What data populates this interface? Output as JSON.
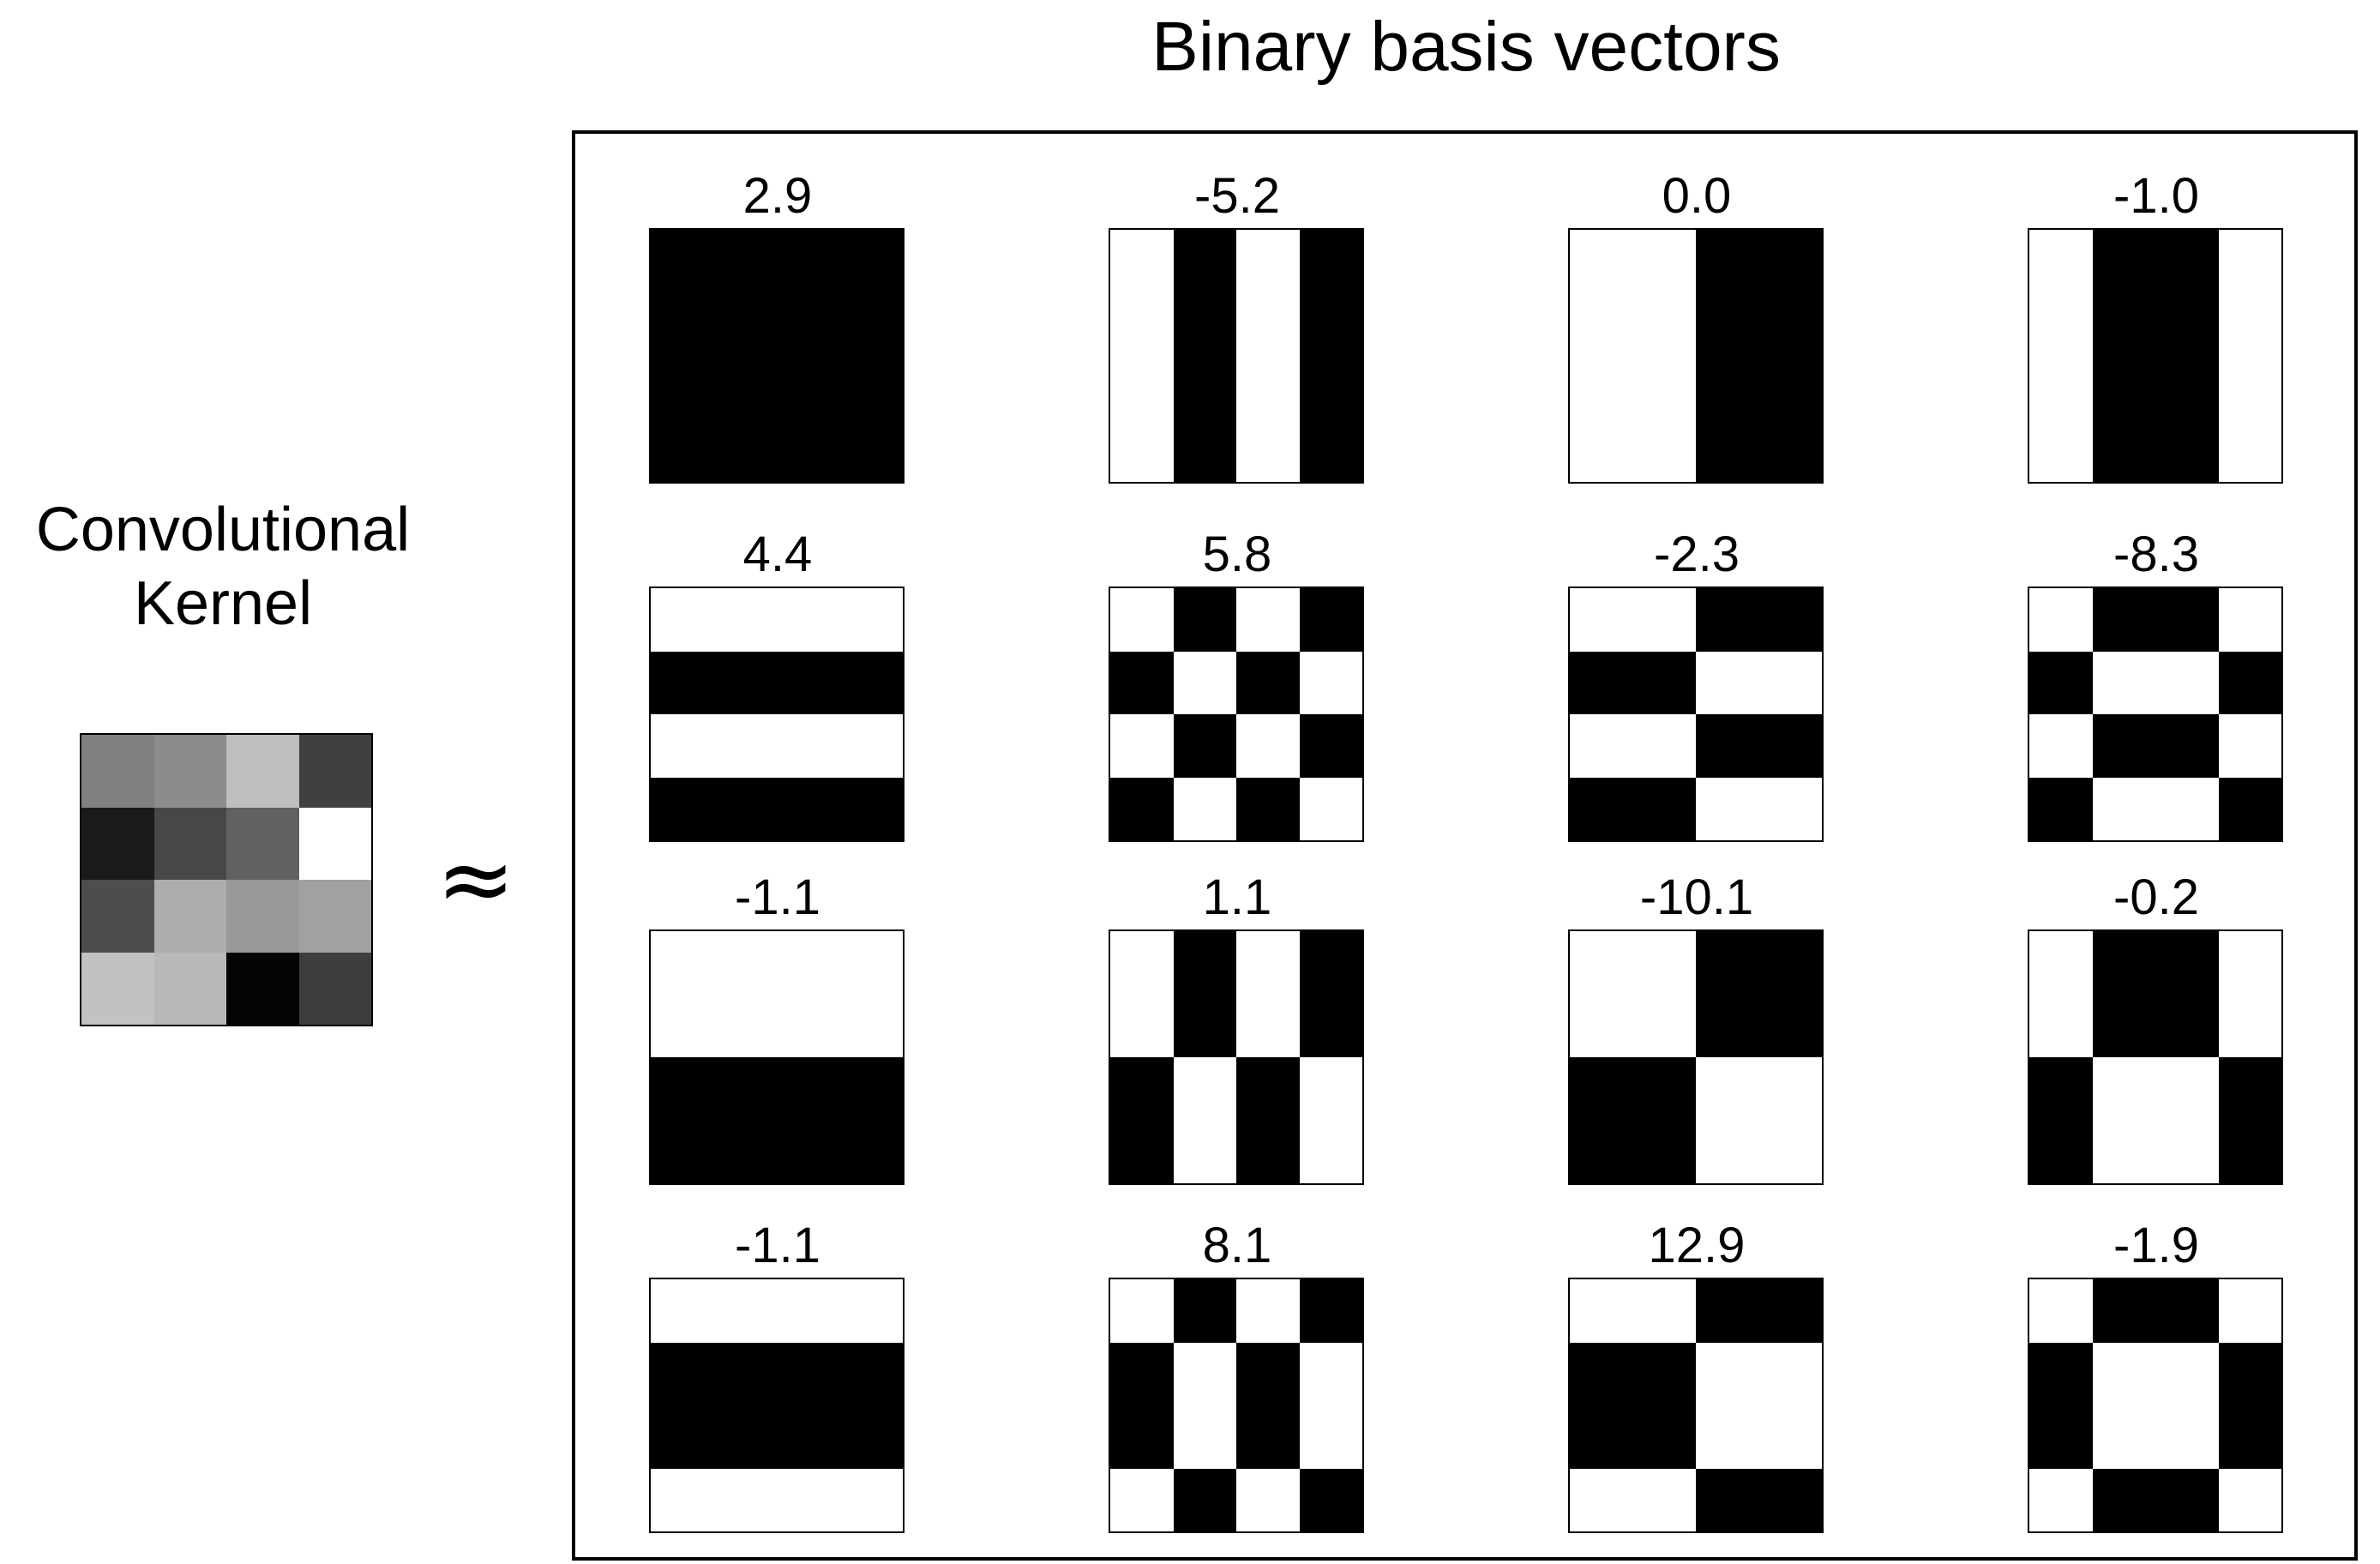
{
  "title": "Binary basis vectors",
  "kernel": {
    "label_line1": "Convolutional",
    "label_line2": "Kernel",
    "approx_symbol": "≈",
    "gray_levels": [
      [
        0.5,
        0.55,
        0.75,
        0.25
      ],
      [
        0.1,
        0.28,
        0.38,
        1.0
      ],
      [
        0.3,
        0.68,
        0.6,
        0.63
      ],
      [
        0.76,
        0.72,
        0.02,
        0.24
      ]
    ]
  },
  "basis": [
    {
      "coef": "2.9",
      "pattern": [
        [
          1,
          1,
          1,
          1
        ],
        [
          1,
          1,
          1,
          1
        ],
        [
          1,
          1,
          1,
          1
        ],
        [
          1,
          1,
          1,
          1
        ]
      ]
    },
    {
      "coef": "-5.2",
      "pattern": [
        [
          0,
          1,
          0,
          1
        ],
        [
          0,
          1,
          0,
          1
        ],
        [
          0,
          1,
          0,
          1
        ],
        [
          0,
          1,
          0,
          1
        ]
      ]
    },
    {
      "coef": "0.0",
      "pattern": [
        [
          0,
          0,
          1,
          1
        ],
        [
          0,
          0,
          1,
          1
        ],
        [
          0,
          0,
          1,
          1
        ],
        [
          0,
          0,
          1,
          1
        ]
      ]
    },
    {
      "coef": "-1.0",
      "pattern": [
        [
          0,
          1,
          1,
          0
        ],
        [
          0,
          1,
          1,
          0
        ],
        [
          0,
          1,
          1,
          0
        ],
        [
          0,
          1,
          1,
          0
        ]
      ]
    },
    {
      "coef": "4.4",
      "pattern": [
        [
          0,
          0,
          0,
          0
        ],
        [
          1,
          1,
          1,
          1
        ],
        [
          0,
          0,
          0,
          0
        ],
        [
          1,
          1,
          1,
          1
        ]
      ]
    },
    {
      "coef": "5.8",
      "pattern": [
        [
          0,
          1,
          0,
          1
        ],
        [
          1,
          0,
          1,
          0
        ],
        [
          0,
          1,
          0,
          1
        ],
        [
          1,
          0,
          1,
          0
        ]
      ]
    },
    {
      "coef": "-2.3",
      "pattern": [
        [
          0,
          0,
          1,
          1
        ],
        [
          1,
          1,
          0,
          0
        ],
        [
          0,
          0,
          1,
          1
        ],
        [
          1,
          1,
          0,
          0
        ]
      ]
    },
    {
      "coef": "-8.3",
      "pattern": [
        [
          0,
          1,
          1,
          0
        ],
        [
          1,
          0,
          0,
          1
        ],
        [
          0,
          1,
          1,
          0
        ],
        [
          1,
          0,
          0,
          1
        ]
      ]
    },
    {
      "coef": "-1.1",
      "pattern": [
        [
          0,
          0,
          0,
          0
        ],
        [
          0,
          0,
          0,
          0
        ],
        [
          1,
          1,
          1,
          1
        ],
        [
          1,
          1,
          1,
          1
        ]
      ]
    },
    {
      "coef": "1.1",
      "pattern": [
        [
          0,
          1,
          0,
          1
        ],
        [
          0,
          1,
          0,
          1
        ],
        [
          1,
          0,
          1,
          0
        ],
        [
          1,
          0,
          1,
          0
        ]
      ]
    },
    {
      "coef": "-10.1",
      "pattern": [
        [
          0,
          0,
          1,
          1
        ],
        [
          0,
          0,
          1,
          1
        ],
        [
          1,
          1,
          0,
          0
        ],
        [
          1,
          1,
          0,
          0
        ]
      ]
    },
    {
      "coef": "-0.2",
      "pattern": [
        [
          0,
          1,
          1,
          0
        ],
        [
          0,
          1,
          1,
          0
        ],
        [
          1,
          0,
          0,
          1
        ],
        [
          1,
          0,
          0,
          1
        ]
      ]
    },
    {
      "coef": "-1.1",
      "pattern": [
        [
          0,
          0,
          0,
          0
        ],
        [
          1,
          1,
          1,
          1
        ],
        [
          1,
          1,
          1,
          1
        ],
        [
          0,
          0,
          0,
          0
        ]
      ]
    },
    {
      "coef": "8.1",
      "pattern": [
        [
          0,
          1,
          0,
          1
        ],
        [
          1,
          0,
          1,
          0
        ],
        [
          1,
          0,
          1,
          0
        ],
        [
          0,
          1,
          0,
          1
        ]
      ]
    },
    {
      "coef": "12.9",
      "pattern": [
        [
          0,
          0,
          1,
          1
        ],
        [
          1,
          1,
          0,
          0
        ],
        [
          1,
          1,
          0,
          0
        ],
        [
          0,
          0,
          1,
          1
        ]
      ]
    },
    {
      "coef": "-1.9",
      "pattern": [
        [
          0,
          1,
          1,
          0
        ],
        [
          1,
          0,
          0,
          1
        ],
        [
          1,
          0,
          0,
          1
        ],
        [
          0,
          1,
          1,
          0
        ]
      ]
    }
  ]
}
